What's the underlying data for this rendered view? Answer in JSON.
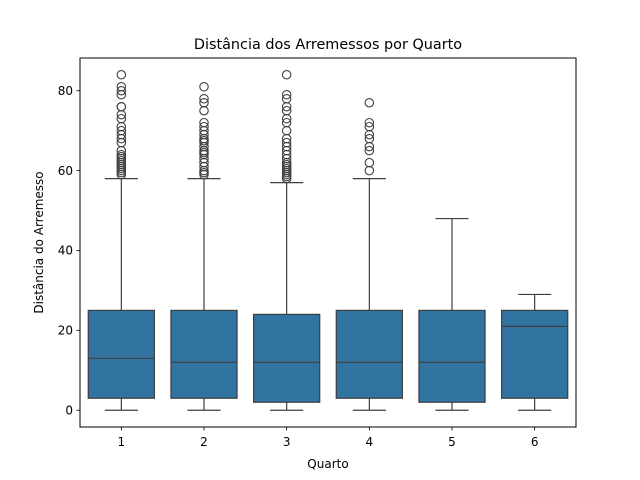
{
  "chart_data": {
    "type": "box",
    "title": "Distância dos Arremessos por Quarto",
    "xlabel": "Quarto",
    "ylabel": "Distância do Arremesso",
    "categories": [
      "1",
      "2",
      "3",
      "4",
      "5",
      "6"
    ],
    "y_ticks": [
      0,
      20,
      40,
      60,
      80
    ],
    "ylim": [
      -4.2,
      88.2
    ],
    "grid": false,
    "box_color": "#3274a1",
    "line_color": "#3f3f3f",
    "boxes": [
      {
        "category": "1",
        "whisker_low": 0,
        "q1": 3,
        "median": 13,
        "q3": 25,
        "whisker_high": 58,
        "outliers": [
          59,
          59.5,
          60,
          60.5,
          61,
          61.5,
          62,
          62.5,
          63,
          63.5,
          64,
          65,
          67,
          68,
          69,
          70,
          71,
          73,
          74,
          76,
          76,
          79,
          80,
          81,
          84
        ]
      },
      {
        "category": "2",
        "whisker_low": 0,
        "q1": 3,
        "median": 12,
        "q3": 25,
        "whisker_high": 58,
        "outliers": [
          59,
          59.5,
          60,
          61,
          62,
          63,
          64,
          64.5,
          65,
          66,
          67,
          67.5,
          68,
          69,
          70,
          71,
          72,
          75,
          77,
          78,
          81
        ]
      },
      {
        "category": "3",
        "whisker_low": 0,
        "q1": 2,
        "median": 12,
        "q3": 24,
        "whisker_high": 57,
        "outliers": [
          58,
          58.5,
          59,
          59.5,
          60,
          60.5,
          61,
          61.5,
          62,
          63,
          64,
          65,
          66,
          67,
          68,
          70,
          72,
          73,
          75,
          76,
          78,
          79,
          84
        ]
      },
      {
        "category": "4",
        "whisker_low": 0,
        "q1": 3,
        "median": 12,
        "q3": 25,
        "whisker_high": 58,
        "outliers": [
          60,
          62,
          65,
          66,
          68,
          69,
          71,
          72,
          77
        ]
      },
      {
        "category": "5",
        "whisker_low": 0,
        "q1": 2,
        "median": 12,
        "q3": 25,
        "whisker_high": 48,
        "outliers": []
      },
      {
        "category": "6",
        "whisker_low": 0,
        "q1": 3,
        "median": 21,
        "q3": 25,
        "whisker_high": 29,
        "outliers": []
      }
    ]
  }
}
